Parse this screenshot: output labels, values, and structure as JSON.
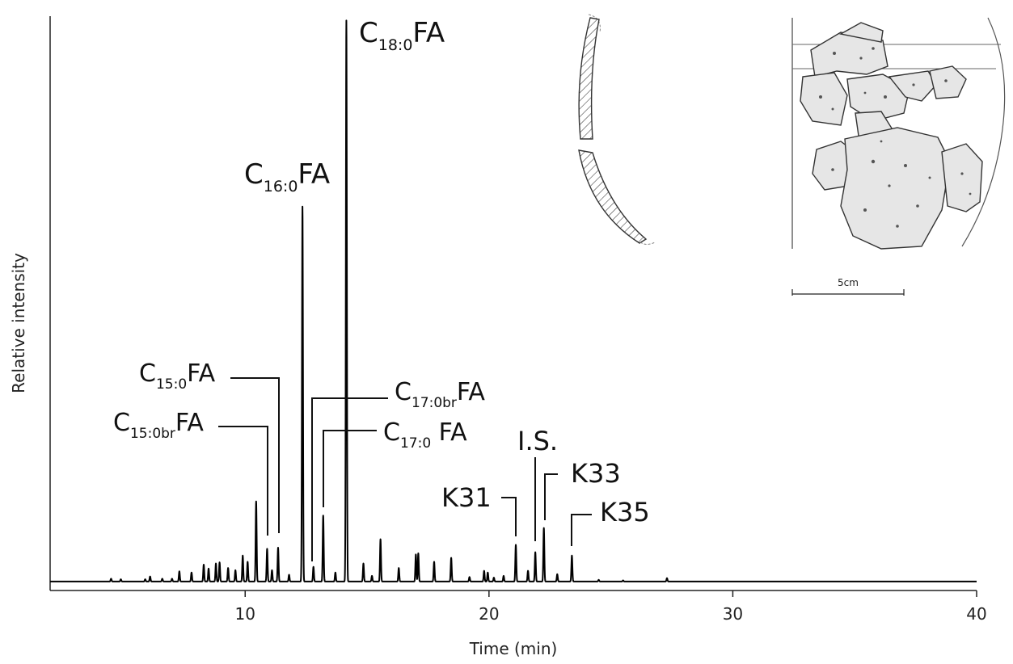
{
  "chart_data": {
    "type": "line",
    "xlabel": "Time (min)",
    "ylabel": "Relative intensity",
    "xlim": [
      2,
      40
    ],
    "ylim": [
      0,
      100
    ],
    "x_ticks": [
      10,
      20,
      30,
      40
    ],
    "grid": false,
    "legend": "none",
    "line_color": "#000000",
    "baseline": 0.3,
    "series": [
      {
        "peaks": [
          {
            "x": 4.5,
            "h": 0.5
          },
          {
            "x": 4.9,
            "h": 0.4
          },
          {
            "x": 5.9,
            "h": 0.4
          },
          {
            "x": 6.1,
            "h": 0.9
          },
          {
            "x": 6.6,
            "h": 0.5
          },
          {
            "x": 7.0,
            "h": 0.5
          },
          {
            "x": 7.3,
            "h": 1.8
          },
          {
            "x": 7.8,
            "h": 1.6
          },
          {
            "x": 8.3,
            "h": 3.0
          },
          {
            "x": 8.5,
            "h": 2.3
          },
          {
            "x": 8.8,
            "h": 3.2
          },
          {
            "x": 8.95,
            "h": 3.4
          },
          {
            "x": 9.3,
            "h": 2.4
          },
          {
            "x": 9.6,
            "h": 2.0
          },
          {
            "x": 9.9,
            "h": 4.6
          },
          {
            "x": 10.1,
            "h": 3.5
          },
          {
            "x": 10.45,
            "h": 14.2
          },
          {
            "x": 10.9,
            "h": 5.8
          },
          {
            "x": 11.1,
            "h": 2.0
          },
          {
            "x": 11.35,
            "h": 6.0
          },
          {
            "x": 11.8,
            "h": 1.2
          },
          {
            "x": 12.35,
            "h": 66.5
          },
          {
            "x": 12.8,
            "h": 2.6
          },
          {
            "x": 13.2,
            "h": 11.7
          },
          {
            "x": 13.7,
            "h": 1.6
          },
          {
            "x": 14.15,
            "h": 99.5
          },
          {
            "x": 14.85,
            "h": 3.2
          },
          {
            "x": 15.2,
            "h": 1.0
          },
          {
            "x": 15.55,
            "h": 7.5
          },
          {
            "x": 16.3,
            "h": 2.4
          },
          {
            "x": 17.0,
            "h": 4.8
          },
          {
            "x": 17.1,
            "h": 5.0
          },
          {
            "x": 17.75,
            "h": 3.5
          },
          {
            "x": 18.45,
            "h": 4.2
          },
          {
            "x": 19.2,
            "h": 0.8
          },
          {
            "x": 19.8,
            "h": 1.9
          },
          {
            "x": 19.95,
            "h": 1.6
          },
          {
            "x": 20.2,
            "h": 0.7
          },
          {
            "x": 20.6,
            "h": 1.0
          },
          {
            "x": 21.1,
            "h": 6.5
          },
          {
            "x": 21.6,
            "h": 1.9
          },
          {
            "x": 21.9,
            "h": 5.2
          },
          {
            "x": 22.25,
            "h": 9.5
          },
          {
            "x": 22.8,
            "h": 1.3
          },
          {
            "x": 23.4,
            "h": 4.6
          },
          {
            "x": 24.5,
            "h": 0.3
          },
          {
            "x": 25.5,
            "h": 0.2
          },
          {
            "x": 27.3,
            "h": 0.6
          }
        ]
      }
    ],
    "annotations": [
      {
        "id": "c18",
        "main": "C",
        "sub": "18:0",
        "suffix": "FA",
        "peak_x": 14.15
      },
      {
        "id": "c16",
        "main": "C",
        "sub": "16:0",
        "suffix": "FA",
        "peak_x": 12.35
      },
      {
        "id": "c15",
        "main": "C",
        "sub": "15:0",
        "suffix": "FA",
        "peak_x": 11.35
      },
      {
        "id": "c15br",
        "main": "C",
        "sub": "15:0br",
        "suffix": "FA",
        "peak_x": 10.9
      },
      {
        "id": "c17br",
        "main": "C",
        "sub": "17:0br",
        "suffix": "FA",
        "peak_x": 12.8
      },
      {
        "id": "c17",
        "main": "C",
        "sub": "17:0",
        "suffix": " FA",
        "peak_x": 13.2
      },
      {
        "id": "is",
        "main": "I.S.",
        "sub": "",
        "suffix": "",
        "peak_x": 21.9
      },
      {
        "id": "k31",
        "main": "K31",
        "sub": "",
        "suffix": "",
        "peak_x": 21.1
      },
      {
        "id": "k33",
        "main": "K33",
        "sub": "",
        "suffix": "",
        "peak_x": 22.25
      },
      {
        "id": "k35",
        "main": "K35",
        "sub": "",
        "suffix": "",
        "peak_x": 23.4
      }
    ]
  },
  "inset": {
    "scale_label": "5cm"
  }
}
